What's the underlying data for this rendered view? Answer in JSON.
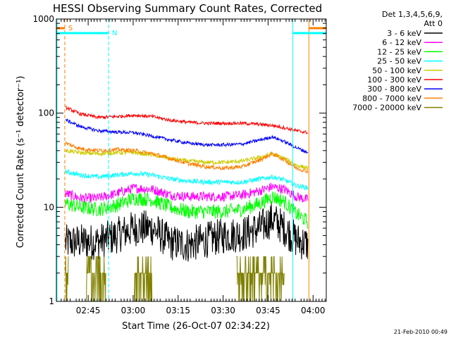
{
  "chart_data": {
    "type": "line",
    "title": "HESSI Observing Summary Count Rates, Corrected",
    "xlabel": "Start Time (26-Oct-07 02:34:22)",
    "ylabel": "Corrected Count Rate (s⁻¹ detector⁻¹)",
    "ylog": true,
    "ylim": [
      1,
      1000
    ],
    "xlim_minutes": [
      0,
      90
    ],
    "y_ticks": [
      {
        "v": 1,
        "label": "1"
      },
      {
        "v": 10,
        "label": "10"
      },
      {
        "v": 100,
        "label": "100"
      },
      {
        "v": 1000,
        "label": "1000"
      }
    ],
    "x_ticks": [
      {
        "t": 10.6,
        "label": "02:45"
      },
      {
        "t": 25.6,
        "label": "03:00"
      },
      {
        "t": 40.6,
        "label": "03:15"
      },
      {
        "t": 55.6,
        "label": "03:30"
      },
      {
        "t": 70.6,
        "label": "03:45"
      },
      {
        "t": 85.6,
        "label": "04:00"
      }
    ],
    "legend_header": [
      "Det 1,3,4,5,6,9,",
      "Att 0"
    ],
    "legend_placement": "right",
    "series": [
      {
        "name": "3 - 6 keV",
        "color": "#000000",
        "x": [
          3,
          8,
          14,
          20,
          26,
          32,
          38,
          44,
          50,
          56,
          62,
          68,
          72,
          76,
          80,
          84
        ],
        "y": [
          4.2,
          4.3,
          4.3,
          5.0,
          6.0,
          6.0,
          4.2,
          4.0,
          4.5,
          5.0,
          5.2,
          6.0,
          7.5,
          6.0,
          4.5,
          4.0
        ]
      },
      {
        "name": "6 - 12 keV",
        "color": "#ff00ff",
        "x": [
          3,
          8,
          14,
          20,
          26,
          32,
          38,
          44,
          50,
          56,
          62,
          68,
          72,
          76,
          80,
          84
        ],
        "y": [
          14.0,
          12.5,
          12.5,
          14.0,
          16.0,
          15.5,
          13.5,
          13.0,
          13.0,
          13.0,
          13.5,
          15.0,
          16.5,
          15.5,
          13.0,
          12.0
        ]
      },
      {
        "name": "12 - 25 keV",
        "color": "#00ff00",
        "x": [
          3,
          8,
          14,
          20,
          26,
          32,
          38,
          44,
          50,
          56,
          62,
          68,
          72,
          76,
          80,
          84
        ],
        "y": [
          11.0,
          10.0,
          9.5,
          10.5,
          12.5,
          12.0,
          10.0,
          9.0,
          9.0,
          9.0,
          9.5,
          11.0,
          13.0,
          11.5,
          8.5,
          7.0
        ]
      },
      {
        "name": "25 - 50 keV",
        "color": "#00ffff",
        "x": [
          3,
          8,
          14,
          20,
          26,
          32,
          38,
          44,
          50,
          56,
          62,
          68,
          72,
          76,
          80,
          84
        ],
        "y": [
          24.0,
          22.0,
          21.0,
          22.0,
          23.0,
          22.0,
          20.0,
          19.0,
          18.5,
          18.5,
          18.5,
          20.0,
          21.0,
          19.5,
          17.0,
          16.0
        ]
      },
      {
        "name": "50 - 100 keV",
        "color": "#cccc00",
        "x": [
          3,
          8,
          14,
          20,
          26,
          32,
          38,
          44,
          50,
          56,
          62,
          68,
          72,
          76,
          80,
          84
        ],
        "y": [
          40.0,
          38.0,
          37.0,
          38.0,
          38.0,
          36.0,
          33.0,
          31.0,
          30.0,
          30.0,
          31.0,
          34.0,
          37.0,
          33.0,
          28.0,
          26.0
        ]
      },
      {
        "name": "100 - 300 keV",
        "color": "#ff0000",
        "x": [
          3,
          8,
          14,
          20,
          26,
          32,
          38,
          44,
          50,
          56,
          62,
          68,
          72,
          76,
          80,
          84
        ],
        "y": [
          115.0,
          98.0,
          90.0,
          92.0,
          95.0,
          92.0,
          84.0,
          80.0,
          78.0,
          78.0,
          78.0,
          76.0,
          74.0,
          70.0,
          65.0,
          62.0
        ]
      },
      {
        "name": "300 - 800 keV",
        "color": "#0000ff",
        "x": [
          3,
          8,
          14,
          20,
          26,
          32,
          38,
          44,
          50,
          56,
          62,
          68,
          72,
          76,
          80,
          84
        ],
        "y": [
          85.0,
          72.0,
          65.0,
          63.0,
          62.0,
          57.0,
          52.0,
          48.0,
          46.0,
          46.0,
          47.0,
          52.0,
          56.0,
          50.0,
          43.0,
          38.0
        ]
      },
      {
        "name": "800 - 7000 keV",
        "color": "#ff8000",
        "x": [
          3,
          8,
          14,
          20,
          26,
          32,
          38,
          44,
          50,
          56,
          62,
          68,
          72,
          76,
          80,
          84
        ],
        "y": [
          48.0,
          42.0,
          40.0,
          41.0,
          40.0,
          37.0,
          33.0,
          29.0,
          27.0,
          26.0,
          27.0,
          32.0,
          37.0,
          32.0,
          26.0,
          24.0
        ]
      },
      {
        "name": "7000 - 20000 keV",
        "color": "#808000",
        "x": [],
        "y": []
      }
    ],
    "annotations": [
      {
        "text": "S",
        "color": "#ff8000"
      },
      {
        "text": "N",
        "color": "#00ffff"
      }
    ],
    "footer_date": "21-Feb-2010 00:49"
  }
}
